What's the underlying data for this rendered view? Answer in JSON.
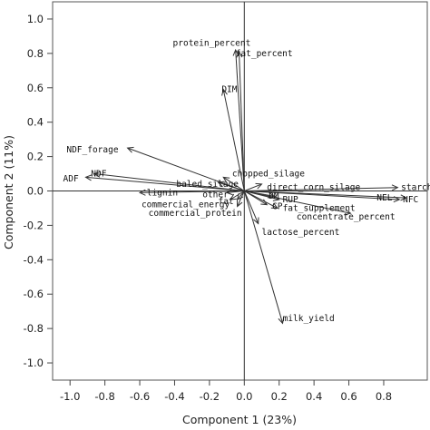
{
  "chart_data": {
    "type": "biplot",
    "xlabel": "Component 1 (23%)",
    "ylabel": "Component 2 (11%)",
    "xlim": [
      -1.1,
      1.05
    ],
    "ylim": [
      -1.1,
      1.1
    ],
    "xticks": [
      -1.0,
      -0.8,
      -0.6,
      -0.4,
      -0.2,
      0.0,
      0.2,
      0.4,
      0.6,
      0.8
    ],
    "xtick_labels": [
      "-1.0",
      "-0.8",
      "-0.6",
      "-0.4",
      "-0.2",
      "0.0",
      "0.2",
      "0.4",
      "0.6",
      "0.8"
    ],
    "yticks": [
      1.0,
      0.8,
      0.6,
      0.4,
      0.2,
      0.0,
      -0.2,
      -0.4,
      -0.6,
      -0.8,
      -1.0
    ],
    "ytick_labels": [
      "1.0",
      "0.8",
      "0.6",
      "0.4",
      "0.2",
      "0.0",
      "-0.2",
      "-0.4",
      "-0.6",
      "-0.8",
      "-1.0"
    ],
    "reference_lines": {
      "x": 0,
      "y": 0
    },
    "grid": false,
    "vectors": [
      {
        "name": "protein_percent",
        "x": -0.05,
        "y": 0.82,
        "label_x": -0.41,
        "label_y": 0.86
      },
      {
        "name": "fat_percent",
        "x": -0.03,
        "y": 0.81,
        "label_x": -0.05,
        "label_y": 0.8
      },
      {
        "name": "DIM",
        "x": -0.12,
        "y": 0.59,
        "label_x": -0.13,
        "label_y": 0.59
      },
      {
        "name": "NDF_forage",
        "x": -0.67,
        "y": 0.25,
        "label_x": -1.02,
        "label_y": 0.24
      },
      {
        "name": "ADF",
        "x": -0.91,
        "y": 0.08,
        "label_x": -1.04,
        "label_y": 0.07
      },
      {
        "name": "NDF",
        "x": -0.86,
        "y": 0.1,
        "label_x": -0.88,
        "label_y": 0.1
      },
      {
        "name": "lignin",
        "x": -0.6,
        "y": -0.01,
        "label_x": -0.56,
        "label_y": -0.01
      },
      {
        "name": "baled_silage",
        "x": -0.15,
        "y": 0.05,
        "label_x": -0.39,
        "label_y": 0.04
      },
      {
        "name": "chopped_silage",
        "x": -0.12,
        "y": 0.08,
        "label_x": -0.07,
        "label_y": 0.1
      },
      {
        "name": "direct_corn_silage",
        "x": 0.1,
        "y": 0.04,
        "label_x": 0.13,
        "label_y": 0.02
      },
      {
        "name": "other",
        "x": -0.1,
        "y": -0.01,
        "label_x": -0.24,
        "label_y": -0.02
      },
      {
        "name": "commercial_energy",
        "x": -0.08,
        "y": -0.05,
        "label_x": -0.59,
        "label_y": -0.08
      },
      {
        "name": "commercial_protein",
        "x": -0.04,
        "y": -0.09,
        "label_x": -0.55,
        "label_y": -0.13
      },
      {
        "name": "fat",
        "x": -0.04,
        "y": -0.05,
        "label_x": -0.15,
        "label_y": -0.06
      },
      {
        "name": "DM",
        "x": 0.17,
        "y": -0.03,
        "label_x": 0.14,
        "label_y": -0.03
      },
      {
        "name": "RUP",
        "x": 0.2,
        "y": -0.05,
        "label_x": 0.22,
        "label_y": -0.05
      },
      {
        "name": "CP",
        "x": 0.13,
        "y": -0.08,
        "label_x": 0.16,
        "label_y": -0.09
      },
      {
        "name": "fat_supplement",
        "x": 0.19,
        "y": -0.1,
        "label_x": 0.22,
        "label_y": -0.1
      },
      {
        "name": "concentrate_percent",
        "x": 0.61,
        "y": -0.13,
        "label_x": 0.3,
        "label_y": -0.15
      },
      {
        "name": "starch",
        "x": 0.88,
        "y": 0.02,
        "label_x": 0.9,
        "label_y": 0.02
      },
      {
        "name": "NEL",
        "x": 0.89,
        "y": -0.05,
        "label_x": 0.76,
        "label_y": -0.04
      },
      {
        "name": "NFC",
        "x": 0.93,
        "y": -0.04,
        "label_x": 0.91,
        "label_y": -0.05
      },
      {
        "name": "lactose_percent",
        "x": 0.08,
        "y": -0.19,
        "label_x": 0.1,
        "label_y": -0.24
      },
      {
        "name": "milk_yield",
        "x": 0.22,
        "y": -0.77,
        "label_x": 0.22,
        "label_y": -0.74
      }
    ]
  }
}
